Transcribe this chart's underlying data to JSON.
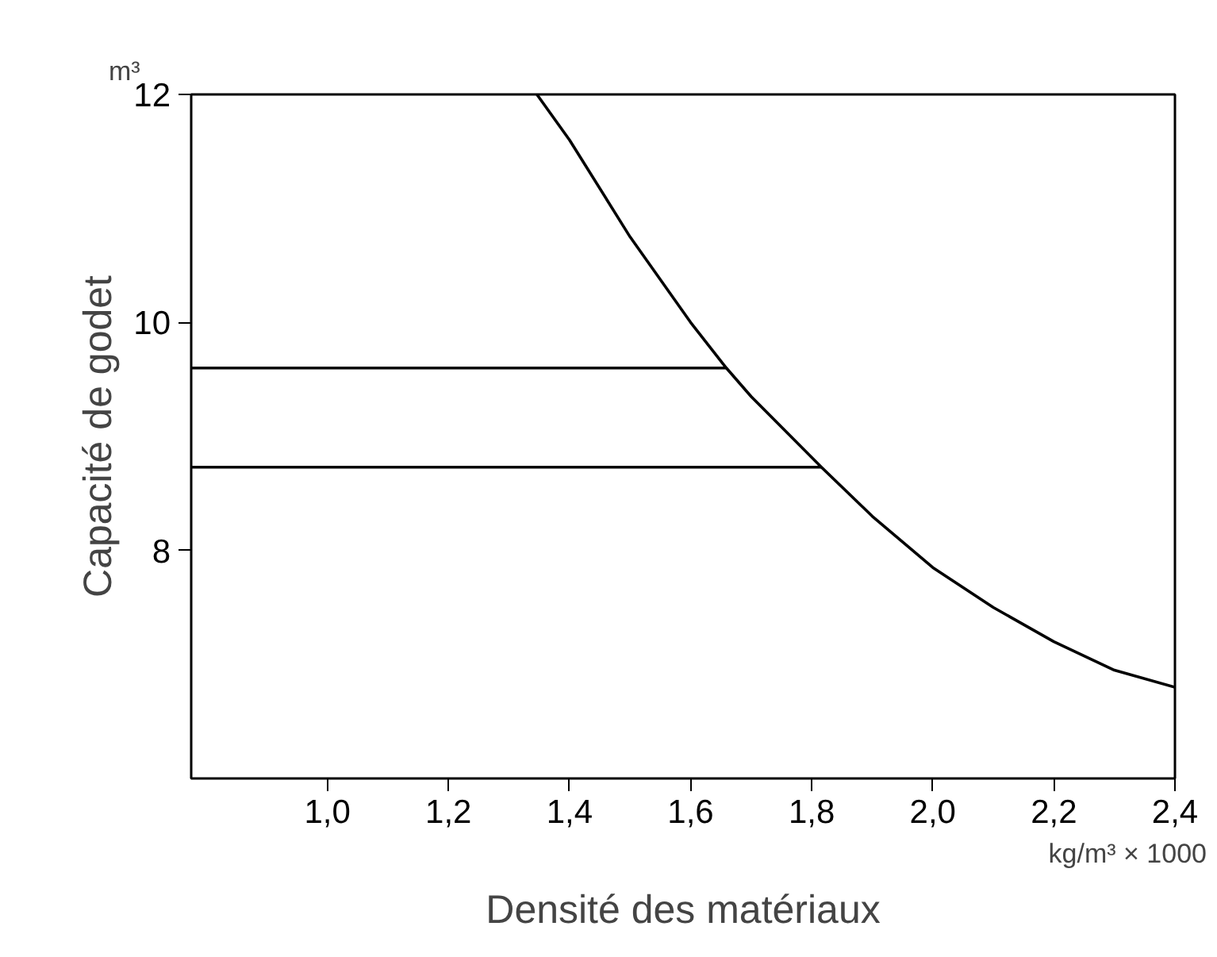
{
  "chart_data": {
    "type": "line",
    "xlabel": "Densité des matériaux",
    "ylabel": "Capacité de godet",
    "annotations": [
      "m³",
      "kg/m³ × 1000"
    ],
    "series": [
      {
        "color": "#000000",
        "x": [
          1.346,
          1.4,
          1.5,
          1.6,
          1.659,
          1.7,
          1.816,
          1.9,
          2.0,
          2.1,
          2.2,
          2.3,
          2.4
        ],
        "values": [
          12,
          11.6,
          10.75,
          10.0,
          9.6,
          9.35,
          8.73,
          8.3,
          7.85,
          7.5,
          7.2,
          6.95,
          6.8
        ]
      },
      {
        "color": "#000000",
        "x": [
          0.775,
          1.659
        ],
        "values": [
          9.6,
          9.6
        ]
      },
      {
        "color": "#000000",
        "x": [
          0.775,
          1.816
        ],
        "values": [
          8.73,
          8.73
        ]
      }
    ],
    "xlim": [
      0.775,
      2.4
    ],
    "ylim": [
      6,
      12
    ],
    "xticks": [
      {
        "value": 1.0,
        "label": "1,0"
      },
      {
        "value": 1.2,
        "label": "1,2"
      },
      {
        "value": 1.4,
        "label": "1,4"
      },
      {
        "value": 1.6,
        "label": "1,6"
      },
      {
        "value": 1.8,
        "label": "1,8"
      },
      {
        "value": 2.0,
        "label": "2,0"
      },
      {
        "value": 2.2,
        "label": "2,2"
      },
      {
        "value": 2.4,
        "label": "2,4"
      }
    ],
    "yticks": [
      8,
      10,
      12
    ],
    "grid": false,
    "marker": "none",
    "line_style": "solid"
  }
}
